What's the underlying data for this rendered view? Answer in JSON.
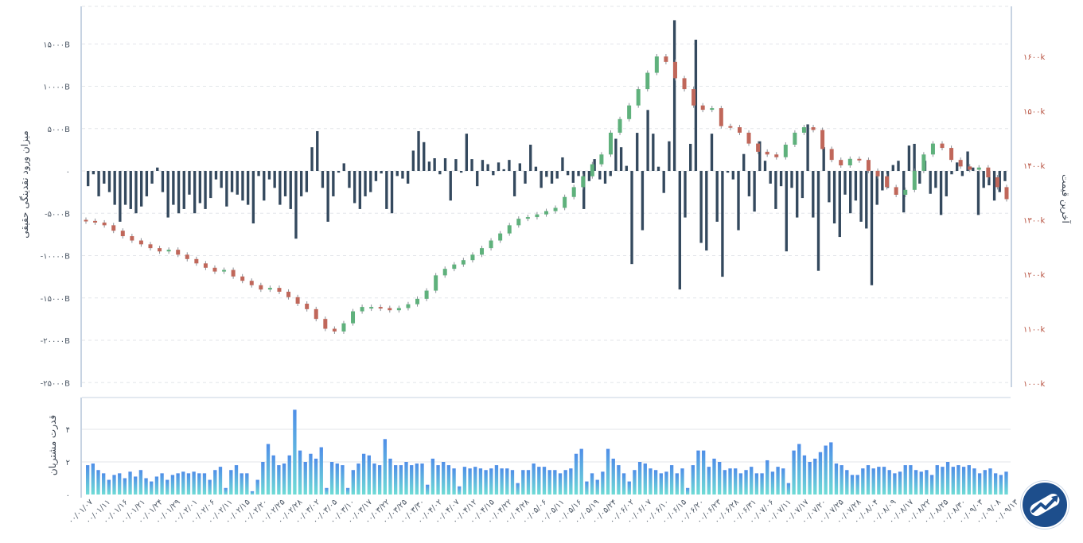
{
  "chart_data": {
    "type": "bar+candlestick",
    "colors": {
      "flow_bar": "#34495e",
      "candle_up": "#5fb17c",
      "candle_down": "#c0675a",
      "right_axis_text": "#b7513f",
      "left_axis_text": "#4a5563",
      "power_top": "#4f8ee8",
      "power_bottom": "#6fdcd6",
      "grid": "#e3e6ea",
      "frame": "#c7d3e2"
    },
    "left_axis": {
      "title": "میزان ورود نقدینگی حقیقی",
      "range": [
        -25000,
        20000
      ],
      "ticks": [
        15000,
        10000,
        5000,
        0,
        -5000,
        -10000,
        -15000,
        -20000,
        -25000
      ],
      "tick_labels": [
        "۱۵۰۰۰B",
        "۱۰۰۰۰B",
        "۵۰۰۰B",
        "۰",
        "-۵۰۰۰B",
        "-۱۰۰۰۰B",
        "-۱۵۰۰۰B",
        "-۲۰۰۰۰B",
        "-۲۵۰۰۰B"
      ]
    },
    "right_axis": {
      "title": "آخرین قیمت",
      "range": [
        1000,
        1700
      ],
      "ticks": [
        1600,
        1500,
        1400,
        1300,
        1200,
        1100,
        1000
      ],
      "tick_labels": [
        "۱۶۰۰k",
        "۱۵۰۰k",
        "۱۴۰۰k",
        "۱۳۰۰k",
        "۱۲۰۰k",
        "۱۱۰۰k",
        "۱۰۰۰k"
      ]
    },
    "power_axis": {
      "title": "قدرت مشتریان",
      "range": [
        0,
        5
      ],
      "ticks": [
        4,
        2,
        0
      ],
      "tick_labels": [
        "۴",
        "۲",
        "۰"
      ]
    },
    "x_labels": [
      "۰۰/۰۱/۰۷",
      "۰۰/۰۱/۱۱",
      "۰۰/۰۱/۱۶",
      "۰۰/۰۱/۲۱",
      "۰۰/۰۱/۲۴",
      "۰۰/۰۱/۲۹",
      "۰۰/۰۲/۰۱",
      "۰۰/۰۲/۰۶",
      "۰۰/۰۲/۱۱",
      "۰۰/۰۲/۱۵",
      "۰۰/۰۲/۲۰",
      "۰۰/۰۲/۲۵",
      "۰۰/۰۲/۲۸",
      "۰۰/۰۳/۰۲",
      "۰۰/۰۳/۰۵",
      "۰۰/۰۳/۱۰",
      "۰۰/۰۳/۱۷",
      "۰۰/۰۳/۲۲",
      "۰۰/۰۳/۲۵",
      "۰۰/۰۳/۳۰",
      "۰۰/۰۴/۰۲",
      "۰۰/۰۴/۰۷",
      "۰۰/۰۴/۱۲",
      "۰۰/۰۴/۱۵",
      "۰۰/۰۴/۲۲",
      "۰۰/۰۴/۲۸",
      "۰۰/۰۵/۰۶",
      "۰۰/۰۵/۱۱",
      "۰۰/۰۵/۱۶",
      "۰۰/۰۵/۱۹",
      "۰۰/۰۵/۲۴",
      "۰۰/۰۶/۰۲",
      "۰۰/۰۶/۰۷",
      "۰۰/۰۶/۱۰",
      "۰۰/۰۶/۱۵",
      "۰۰/۰۶/۲۰",
      "۰۰/۰۶/۲۳",
      "۰۰/۰۶/۲۸",
      "۰۰/۰۶/۳۱",
      "۰۰/۰۷/۰۶",
      "۰۰/۰۷/۱۱",
      "۰۰/۰۷/۱۷",
      "۰۰/۰۷/۲۰",
      "۰۰/۰۷/۲۵",
      "۰۰/۰۷/۲۸",
      "۰۰/۰۸/۰۴",
      "۰۰/۰۸/۰۹",
      "۰۰/۰۸/۱۷",
      "۰۰/۰۸/۲۲",
      "۰۰/۰۸/۲۵",
      "۰۰/۰۸/۳۰",
      "۰۰/۰۹/۰۳",
      "۰۰/۰۹/۰۸",
      "۰۰/۰۹/۱۳"
    ],
    "flow": [
      -1800,
      -400,
      -3000,
      -1500,
      -2500,
      -4000,
      -6000,
      -4000,
      -4500,
      -5000,
      -4200,
      -3000,
      -1500,
      400,
      -2500,
      -5500,
      -4000,
      -5000,
      -4500,
      -2800,
      -5000,
      -3800,
      -4500,
      -3200,
      -1000,
      -2000,
      -4200,
      -2500,
      -2800,
      -3500,
      -4000,
      -6200,
      -600,
      -3500,
      -1000,
      -2000,
      -4000,
      -3000,
      -4500,
      -8000,
      -3000,
      -2500,
      2800,
      4700,
      -2000,
      -6000,
      -3000,
      -200,
      900,
      -2000,
      -3800,
      -4500,
      -3000,
      -2500,
      -1200,
      -300,
      -4500,
      -5000,
      -600,
      -900,
      -1500,
      2400,
      4700,
      3400,
      1100,
      1500,
      -400,
      1500,
      -3500,
      1400,
      -200,
      4400,
      1400,
      -1800,
      1300,
      800,
      -500,
      1000,
      200,
      1300,
      -3000,
      900,
      -1500,
      3100,
      500,
      -2000,
      -700,
      -1500,
      -900,
      1600,
      -500,
      -1400,
      -600,
      -4500,
      -1200,
      1400,
      -1000,
      -1500,
      -600,
      3800,
      2800,
      600,
      -11000,
      4500,
      -7000,
      7200,
      4400,
      500,
      -2600,
      3500,
      17800,
      -14000,
      -5500,
      3200,
      15500,
      -8500,
      -9400,
      4400,
      -6000,
      -12500,
      -200,
      -1000,
      -7000,
      2000,
      -3000,
      -4800,
      3500,
      1200,
      -1500,
      -4500,
      -1800,
      -9500,
      -2000,
      -5500,
      -3200,
      5500,
      -5500,
      -11800,
      2800,
      -3700,
      -6200,
      -7800,
      -2800,
      -5000,
      -3500,
      -6000,
      -6800,
      -13500,
      -4000,
      -2300,
      -2000,
      700,
      1200,
      -4900,
      3000,
      3200,
      -1500,
      1200,
      -2700,
      -2000,
      -5200,
      -3000,
      -400,
      1000,
      -600,
      2300,
      400,
      -5200,
      -2000,
      -1700,
      -3500,
      -2500,
      -1200
    ],
    "price": {
      "x_positions": [
        0.0,
        0.01,
        0.02,
        0.03,
        0.04,
        0.05,
        0.06,
        0.07,
        0.08,
        0.09,
        0.1,
        0.11,
        0.12,
        0.13,
        0.14,
        0.15,
        0.16,
        0.17,
        0.18,
        0.19,
        0.2,
        0.21,
        0.22,
        0.23,
        0.24,
        0.25,
        0.26,
        0.27,
        0.28,
        0.29,
        0.3,
        0.31,
        0.32,
        0.33,
        0.34,
        0.35,
        0.36,
        0.37,
        0.38,
        0.39,
        0.4,
        0.41,
        0.42,
        0.43,
        0.44,
        0.45,
        0.46,
        0.47,
        0.48,
        0.49,
        0.5,
        0.51,
        0.52,
        0.53,
        0.54,
        0.55,
        0.56,
        0.57,
        0.58,
        0.59,
        0.6,
        0.61,
        0.62,
        0.63,
        0.64,
        0.65,
        0.66,
        0.67,
        0.68,
        0.69,
        0.7,
        0.71,
        0.72,
        0.73,
        0.74,
        0.75,
        0.76,
        0.77,
        0.78,
        0.79,
        0.8,
        0.81,
        0.82,
        0.83,
        0.84,
        0.85,
        0.86,
        0.87,
        0.88,
        0.89,
        0.9,
        0.91,
        0.92,
        0.93,
        0.94,
        0.95,
        0.96,
        0.97,
        0.98,
        0.99,
        1.0
      ],
      "close": [
        1298,
        1295,
        1290,
        1280,
        1270,
        1262,
        1255,
        1248,
        1242,
        1245,
        1236,
        1228,
        1220,
        1212,
        1205,
        1208,
        1196,
        1188,
        1180,
        1172,
        1175,
        1168,
        1158,
        1146,
        1136,
        1118,
        1100,
        1095,
        1110,
        1132,
        1140,
        1140,
        1138,
        1134,
        1138,
        1145,
        1155,
        1170,
        1198,
        1210,
        1218,
        1226,
        1236,
        1248,
        1262,
        1275,
        1290,
        1302,
        1305,
        1310,
        1316,
        1322,
        1342,
        1360,
        1380,
        1402,
        1420,
        1460,
        1485,
        1510,
        1540,
        1570,
        1600,
        1590,
        1560,
        1540,
        1510,
        1502,
        1505,
        1472,
        1470,
        1460,
        1440,
        1425,
        1420,
        1415,
        1438,
        1460,
        1470,
        1465,
        1430,
        1410,
        1400,
        1412,
        1410,
        1390,
        1380,
        1360,
        1346,
        1355,
        1390,
        1420,
        1440,
        1432,
        1410,
        1398,
        1392,
        1396,
        1378,
        1360,
        1338
      ]
    },
    "power": [
      1.8,
      1.9,
      1.5,
      1.3,
      0.9,
      1.2,
      1.3,
      1.0,
      1.4,
      1.1,
      1.5,
      1.0,
      0.8,
      1.1,
      1.3,
      0.9,
      1.2,
      1.3,
      1.4,
      1.3,
      1.4,
      1.3,
      1.3,
      0.9,
      1.5,
      1.7,
      0.4,
      1.5,
      1.8,
      1.3,
      1.3,
      0.2,
      0.9,
      2.0,
      3.1,
      2.4,
      1.8,
      1.9,
      2.4,
      5.2,
      2.7,
      2.0,
      2.5,
      2.2,
      2.9,
      0.4,
      2.0,
      1.9,
      1.8,
      0.4,
      1.5,
      1.9,
      2.5,
      2.4,
      1.9,
      1.8,
      3.4,
      2.2,
      1.8,
      1.8,
      2.0,
      1.8,
      1.9,
      1.9,
      0.6,
      2.2,
      1.8,
      2.0,
      1.8,
      1.6,
      0.5,
      1.7,
      1.6,
      1.7,
      1.6,
      1.5,
      1.6,
      1.8,
      1.6,
      1.6,
      1.5,
      0.7,
      1.5,
      1.5,
      1.9,
      1.7,
      1.7,
      1.5,
      1.5,
      1.3,
      1.5,
      1.6,
      2.5,
      2.8,
      0.8,
      1.3,
      0.9,
      1.4,
      2.8,
      2.2,
      1.8,
      1.3,
      0.8,
      1.5,
      2.0,
      1.9,
      1.6,
      1.5,
      1.3,
      1.4,
      1.8,
      1.3,
      1.6,
      0.4,
      1.8,
      2.7,
      2.7,
      1.7,
      2.2,
      2.0,
      1.5,
      1.6,
      1.6,
      1.3,
      1.5,
      1.7,
      1.3,
      1.3,
      2.1,
      1.4,
      1.7,
      1.6,
      0.7,
      2.7,
      3.1,
      2.4,
      2.0,
      2.2,
      2.6,
      3.0,
      3.2,
      1.9,
      1.8,
      1.5,
      1.2,
      1.2,
      1.6,
      1.8,
      1.6,
      1.7,
      1.7,
      1.5,
      1.3,
      1.4,
      1.8,
      1.8,
      1.5,
      1.4,
      1.5,
      1.2,
      1.8,
      1.7,
      2.0,
      1.7,
      1.8,
      1.7,
      1.8,
      1.6,
      1.3,
      1.5,
      1.6,
      1.3,
      1.2,
      1.4
    ]
  }
}
